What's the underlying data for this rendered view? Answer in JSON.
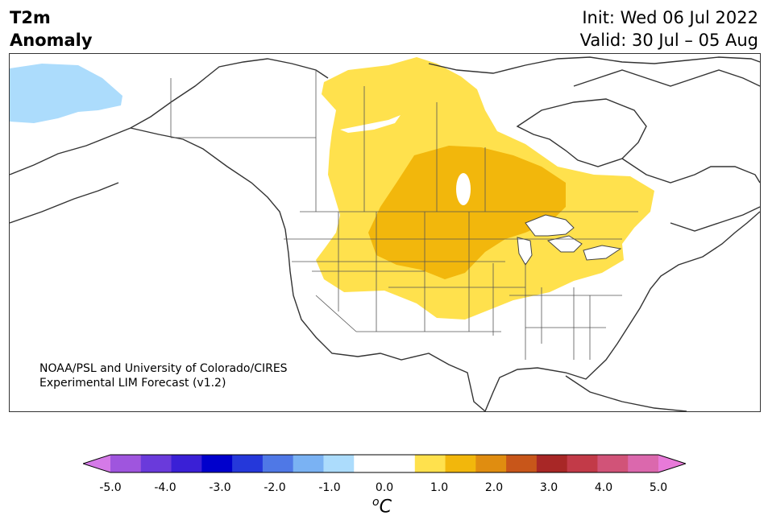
{
  "header": {
    "title_line1": "T2m",
    "title_line2": "Anomaly",
    "init": "Init: Wed 06 Jul 2022",
    "valid": "Valid: 30 Jul – 05 Aug"
  },
  "credit": {
    "line1": "NOAA/PSL and University of Colorado/CIRES",
    "line2": "Experimental LIM Forecast (v1.2)"
  },
  "colorbar": {
    "unit": "C",
    "unit_prefix": "o",
    "ticks": [
      "-5.0",
      "-4.0",
      "-3.0",
      "-2.0",
      "-1.0",
      "0.0",
      "1.0",
      "2.0",
      "3.0",
      "4.0",
      "5.0"
    ],
    "colors": [
      "#d57ae8",
      "#9f55de",
      "#6a3adb",
      "#3a20d6",
      "#0000cc",
      "#2538da",
      "#4f78e6",
      "#7ab2f3",
      "#acdcfc",
      "#ffffff",
      "#ffffff",
      "#ffe14d",
      "#f2b70c",
      "#e08d10",
      "#c8561a",
      "#a82726",
      "#c23a48",
      "#d15378",
      "#db68ad",
      "#e87ad9"
    ],
    "min_label_value": -5.0,
    "max_label_value": 5.0,
    "extend": "both"
  },
  "map_regions": {
    "cool_anomaly_color": "#acdcfc",
    "warm_1_color": "#ffe14d",
    "warm_2_color": "#f2b70c"
  }
}
